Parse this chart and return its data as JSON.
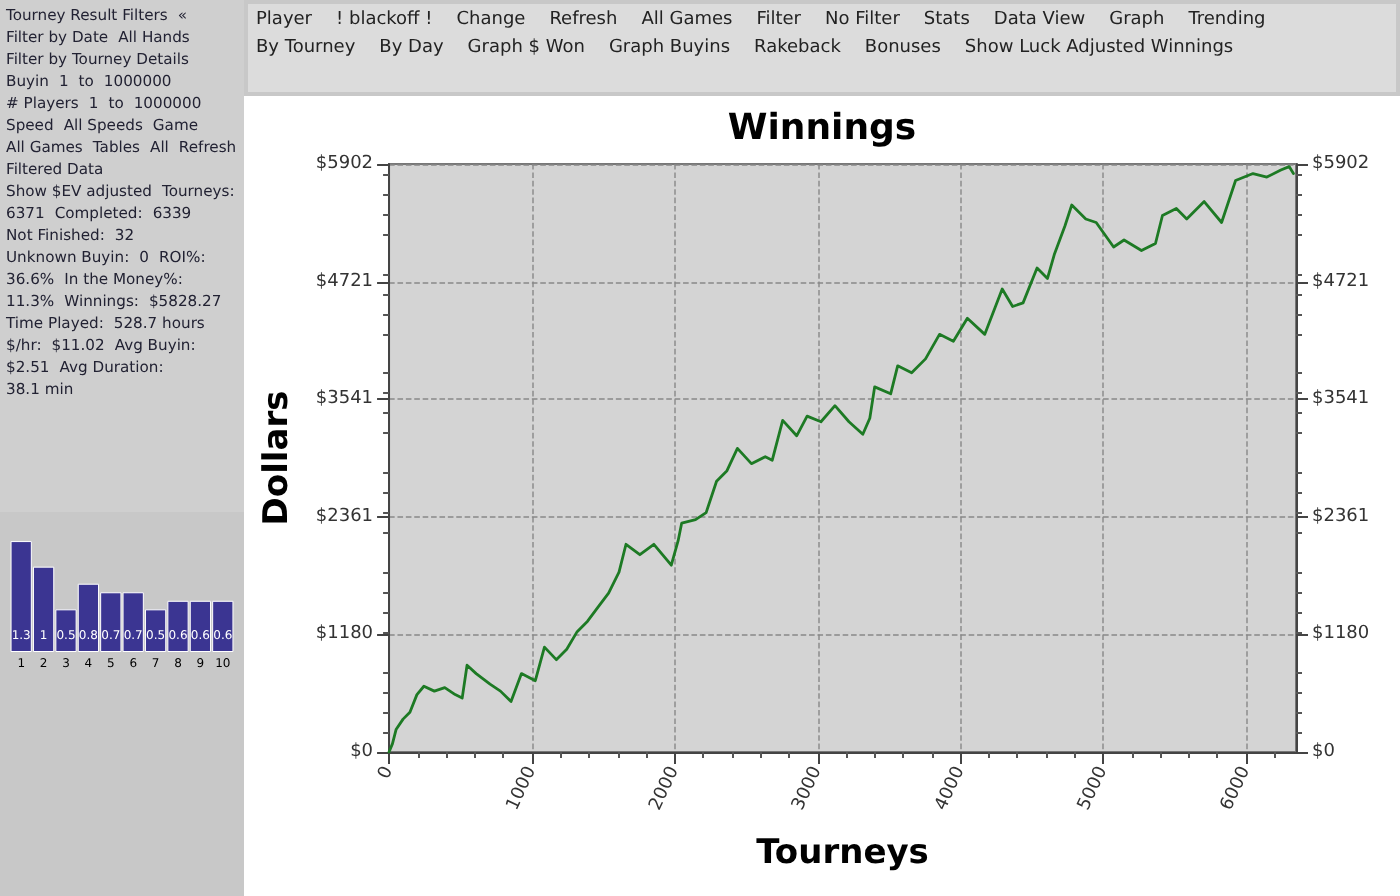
{
  "chart_data": [
    {
      "type": "other",
      "annotations": [
        "Tourney Result Filters",
        "«",
        "Filter by Date",
        "All Hands",
        "Filter by Tourney Details",
        "Buyin",
        "1",
        "to",
        "1000000",
        "# Players",
        "1",
        "to",
        "1000000",
        "Speed",
        "All Speeds",
        "Game",
        "All Games",
        "Tables",
        "All",
        "Refresh",
        "Filtered Data",
        "Show $EV adjusted",
        "Tourneys:",
        "6371",
        "Completed:",
        "6339",
        "Not Finished:",
        "32",
        "Unknown Buyin:",
        "0",
        "ROI%:",
        "36.6%",
        "In the Money%:",
        "11.3%",
        "Winnings:",
        "$5828.27",
        "Time Played:",
        "528.7 hours",
        "$/hr:",
        "$11.02",
        "Avg Buyin:",
        "$2.51",
        "Avg Duration:",
        "38.1 min"
      ]
    },
    {
      "type": "bar",
      "categories": [
        "1",
        "2",
        "3",
        "4",
        "5",
        "6",
        "7",
        "8",
        "9",
        "10"
      ],
      "values": [
        1.3,
        1.0,
        0.5,
        0.8,
        0.7,
        0.7,
        0.5,
        0.6,
        0.6,
        0.6
      ],
      "color": "#3b3592",
      "data_labels": true
    },
    {
      "type": "other",
      "annotations": [
        "Player",
        "! blackoff !",
        "Change",
        "Refresh",
        "All Games",
        "Filter",
        "No Filter",
        "Stats",
        "Data View",
        "Graph",
        "Trending",
        "By Tourney",
        "By Day",
        "Graph $ Won",
        "Graph Buyins",
        "Rakeback",
        "Bonuses",
        "Show Luck Adjusted Winnings"
      ]
    },
    {
      "type": "line",
      "title": "Winnings",
      "xlabel": "Tourneys",
      "ylabel": "Dollars",
      "xlim": [
        0,
        6350
      ],
      "xticks": [
        0,
        1000,
        2000,
        3000,
        4000,
        5000,
        6000
      ],
      "ylim": [
        0,
        5902
      ],
      "yticks": [
        {
          "value": 0,
          "label": "$0"
        },
        {
          "value": 1180,
          "label": "$1180"
        },
        {
          "value": 2361,
          "label": "$2361"
        },
        {
          "value": 3541,
          "label": "$3541"
        },
        {
          "value": 4721,
          "label": "$4721"
        },
        {
          "value": 5902,
          "label": "$5902"
        }
      ],
      "y2lim": [
        0,
        5902
      ],
      "y2ticks": [
        {
          "value": 0,
          "label": "$0"
        },
        {
          "value": 1180,
          "label": "$1180"
        },
        {
          "value": 2361,
          "label": "$2361"
        },
        {
          "value": 3541,
          "label": "$3541"
        },
        {
          "value": 4721,
          "label": "$4721"
        },
        {
          "value": 5902,
          "label": "$5902"
        }
      ],
      "grid": true,
      "line_style": "solid",
      "series": [
        {
          "color": "#1d7a24",
          "x": [
            0,
            24,
            49,
            98,
            146,
            195,
            244,
            317,
            390,
            463,
            512,
            546,
            610,
            707,
            780,
            854,
            927,
            1024,
            1088,
            1171,
            1244,
            1317,
            1390,
            1463,
            1537,
            1610,
            1659,
            1756,
            1854,
            1976,
            2024,
            2049,
            2146,
            2220,
            2293,
            2366,
            2439,
            2537,
            2634,
            2683,
            2756,
            2854,
            2927,
            3024,
            3122,
            3220,
            3317,
            3366,
            3400,
            3512,
            3561,
            3659,
            3756,
            3854,
            3951,
            4049,
            4171,
            4293,
            4366,
            4439,
            4537,
            4610,
            4659,
            4732,
            4780,
            4878,
            4951,
            5073,
            5146,
            5268,
            5366,
            5415,
            5512,
            5585,
            5707,
            5829,
            5927,
            6049,
            6146,
            6244,
            6302,
            6332
          ],
          "values": [
            0,
            84,
            225,
            330,
            400,
            576,
            660,
            611,
            646,
            576,
            541,
            871,
            787,
            681,
            611,
            506,
            787,
            716,
            1053,
            927,
            1032,
            1208,
            1313,
            1454,
            1594,
            1805,
            2085,
            1980,
            2085,
            1875,
            2121,
            2298,
            2333,
            2403,
            2718,
            2824,
            3048,
            2894,
            2964,
            2929,
            3329,
            3174,
            3371,
            3315,
            3476,
            3315,
            3189,
            3350,
            3665,
            3595,
            3876,
            3806,
            3946,
            4192,
            4122,
            4353,
            4192,
            4648,
            4472,
            4508,
            4858,
            4753,
            4999,
            5280,
            5490,
            5350,
            5315,
            5069,
            5139,
            5034,
            5104,
            5385,
            5455,
            5350,
            5525,
            5315,
            5736,
            5806,
            5771,
            5841,
            5876,
            5806
          ]
        }
      ]
    }
  ]
}
